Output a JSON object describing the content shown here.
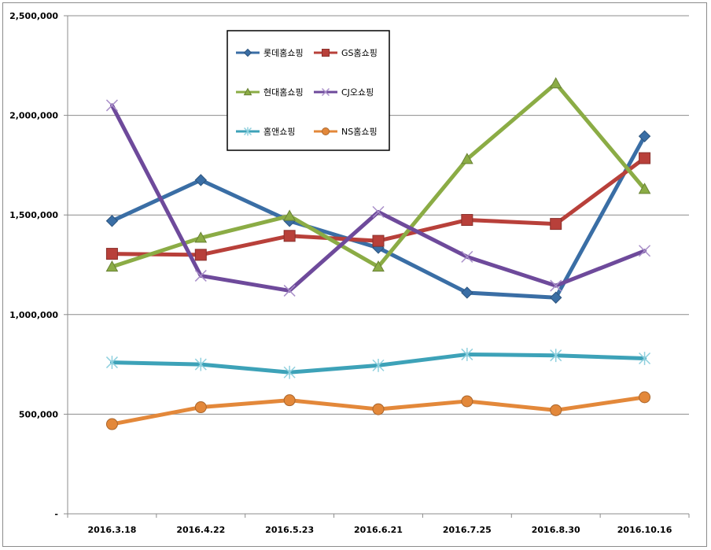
{
  "chart_data": {
    "type": "line",
    "title": "",
    "xlabel": "",
    "ylabel": "",
    "categories": [
      "2016.3.18",
      "2016.4.22",
      "2016.5.23",
      "2016.6.21",
      "2016.7.25",
      "2016.8.30",
      "2016.10.16"
    ],
    "y_ticks": [
      "-",
      "500,000",
      "1,000,000",
      "1,500,000",
      "2,000,000",
      "2,500,000"
    ],
    "ylim": [
      0,
      2500000
    ],
    "grid": true,
    "legend_position": "top-left",
    "series": [
      {
        "name": "롯데홈쇼핑",
        "color": "#3a6ea5",
        "marker": "diamond",
        "values": [
          1470000,
          1675000,
          1470000,
          1335000,
          1110000,
          1085000,
          1895000
        ]
      },
      {
        "name": "GS홈쇼핑",
        "color": "#b8403a",
        "marker": "square",
        "values": [
          1305000,
          1300000,
          1395000,
          1370000,
          1475000,
          1455000,
          1785000
        ]
      },
      {
        "name": "현대홈쇼핑",
        "color": "#8bac45",
        "marker": "triangle",
        "values": [
          1240000,
          1385000,
          1495000,
          1240000,
          1780000,
          2160000,
          1630000
        ]
      },
      {
        "name": "CJ오쇼핑",
        "color": "#6e4a9b",
        "marker": "x",
        "values": [
          2050000,
          1195000,
          1120000,
          1515000,
          1290000,
          1145000,
          1320000
        ]
      },
      {
        "name": "홈앤쇼핑",
        "color": "#3da2b8",
        "marker": "star",
        "values": [
          760000,
          750000,
          710000,
          745000,
          800000,
          795000,
          780000
        ]
      },
      {
        "name": "NS홈쇼핑",
        "color": "#e3883a",
        "marker": "circle",
        "values": [
          450000,
          535000,
          570000,
          525000,
          565000,
          520000,
          585000
        ]
      }
    ]
  }
}
